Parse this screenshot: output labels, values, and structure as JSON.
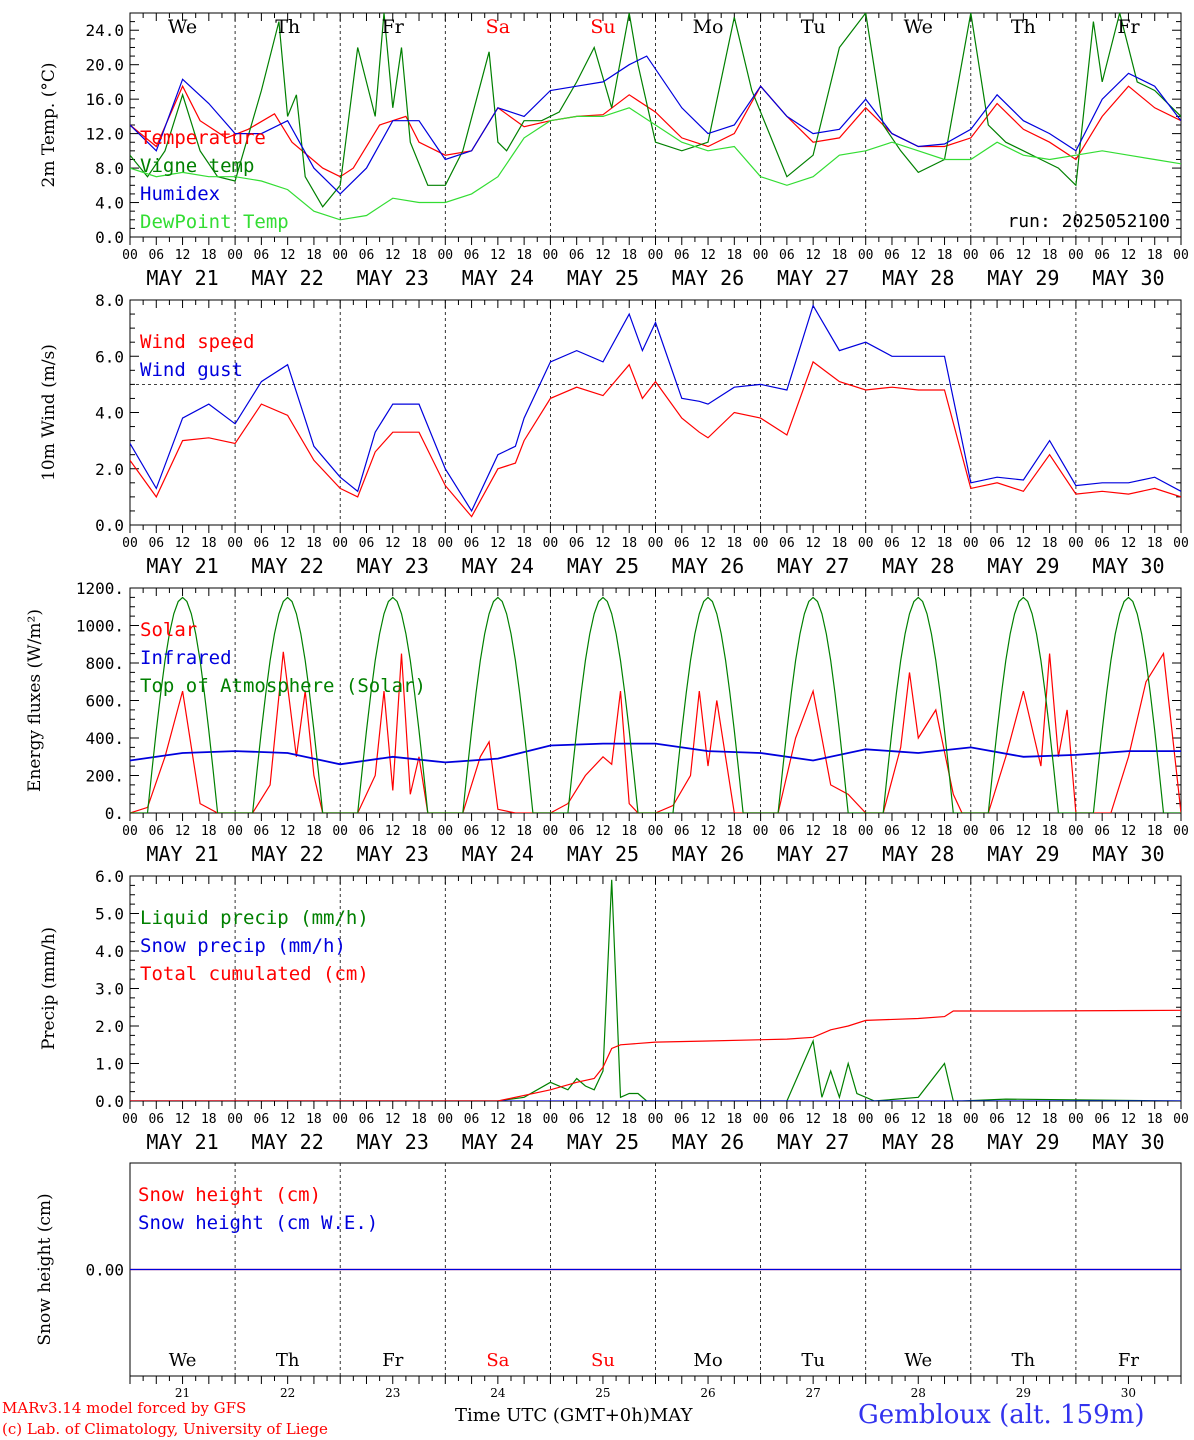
{
  "colors": {
    "red": "#ff0000",
    "green": "#008000",
    "lime": "#33dd33",
    "blue": "#0000dd",
    "black": "#000000",
    "location": "#3333ee"
  },
  "weekdays": [
    {
      "label": "We",
      "color": "black"
    },
    {
      "label": "Th",
      "color": "black"
    },
    {
      "label": "Fr",
      "color": "black"
    },
    {
      "label": "Sa",
      "color": "red"
    },
    {
      "label": "Su",
      "color": "red"
    },
    {
      "label": "Mo",
      "color": "black"
    },
    {
      "label": "Tu",
      "color": "black"
    },
    {
      "label": "We",
      "color": "black"
    },
    {
      "label": "Th",
      "color": "black"
    },
    {
      "label": "Fr",
      "color": "black"
    }
  ],
  "dates": [
    "MAY 21",
    "MAY 22",
    "MAY 23",
    "MAY 24",
    "MAY 25",
    "MAY 26",
    "MAY 27",
    "MAY 28",
    "MAY 29",
    "MAY 30"
  ],
  "day_numbers": [
    "21",
    "22",
    "23",
    "24",
    "25",
    "26",
    "27",
    "28",
    "29",
    "30"
  ],
  "hour_labels": [
    "00",
    "06",
    "12",
    "18"
  ],
  "run_label": "run: 2025052100",
  "footer": {
    "model": "MARv3.14 model forced by GFS",
    "credit": "(c) Lab. of Climatology, University of Liege",
    "time_axis": "Time UTC (GMT+0h)",
    "month": "MAY",
    "location": "Gembloux (alt. 159m)"
  },
  "chart_data": [
    {
      "type": "line",
      "ylabel": "2m Temp. (°C)",
      "ylim": [
        0,
        26
      ],
      "yticks": [
        "0.0",
        "4.0",
        "8.0",
        "12.0",
        "16.0",
        "20.0",
        "24.0"
      ],
      "x_unit": "hours since MAY 21 00 UTC",
      "series": [
        {
          "name": "Temperature",
          "color": "red",
          "x": [
            0,
            6,
            12,
            16,
            22,
            27,
            33,
            37,
            44,
            48,
            51,
            57,
            63,
            66,
            72,
            78,
            84,
            90,
            96,
            102,
            108,
            114,
            120,
            126,
            132,
            138,
            144,
            150,
            156,
            162,
            168,
            174,
            180,
            186,
            192,
            198,
            204,
            210,
            216,
            222,
            228,
            234,
            240
          ],
          "y": [
            13,
            10.5,
            17.5,
            13.5,
            11.5,
            12.5,
            14.3,
            11,
            8,
            7,
            8,
            13,
            14,
            11,
            9.5,
            10,
            15,
            12.8,
            13.5,
            14,
            14.2,
            16.5,
            14.5,
            11.5,
            10.5,
            12,
            17.5,
            14,
            11,
            11.5,
            15,
            12,
            10.5,
            10.5,
            11.5,
            15.5,
            12.5,
            11,
            9,
            14,
            17.5,
            15,
            13.5
          ]
        },
        {
          "name": "Vigne temp",
          "color": "green",
          "x": [
            0,
            4,
            8,
            12,
            16,
            20,
            24,
            30,
            34,
            36,
            38,
            40,
            44,
            48,
            52,
            56,
            58,
            60,
            62,
            64,
            68,
            72,
            76,
            82,
            84,
            86,
            90,
            94,
            98,
            102,
            106,
            110,
            114,
            116,
            120,
            126,
            132,
            138,
            142,
            146,
            150,
            156,
            162,
            168,
            172,
            176,
            180,
            186,
            192,
            196,
            200,
            204,
            208,
            212,
            216,
            220,
            222,
            226,
            230,
            234,
            238,
            240
          ],
          "y": [
            9.5,
            7,
            10,
            16.5,
            10,
            7,
            6.5,
            17,
            25,
            14,
            16.5,
            7,
            3.5,
            6,
            22,
            14,
            26,
            15,
            22,
            11,
            6,
            6,
            10,
            21.5,
            11,
            10,
            13.5,
            13.5,
            14.5,
            18,
            22,
            15,
            26,
            20,
            11,
            10,
            11,
            25.5,
            17,
            12,
            7,
            9.5,
            22,
            26,
            13,
            10,
            7.5,
            9,
            26,
            13,
            11,
            10,
            9,
            8,
            6,
            25,
            18,
            26,
            18,
            17,
            15,
            14
          ]
        },
        {
          "name": "Humidex",
          "color": "blue",
          "x": [
            0,
            6,
            12,
            18,
            24,
            30,
            36,
            42,
            48,
            54,
            60,
            66,
            72,
            78,
            84,
            90,
            96,
            102,
            108,
            114,
            118,
            126,
            132,
            138,
            144,
            150,
            156,
            162,
            168,
            174,
            180,
            186,
            192,
            198,
            204,
            210,
            216,
            222,
            228,
            234,
            240
          ],
          "y": [
            13,
            10,
            18.3,
            15.5,
            12,
            12,
            13.5,
            8,
            5,
            8,
            13.5,
            13.5,
            9,
            10,
            15,
            14,
            17,
            17.5,
            18,
            20,
            21,
            15,
            12,
            13,
            17.5,
            14,
            12,
            12.5,
            16,
            12,
            10.5,
            10.8,
            12.5,
            16.5,
            13.5,
            12,
            10,
            16,
            19,
            17.5,
            13.5
          ]
        },
        {
          "name": "DewPoint Temp",
          "color": "lime",
          "x": [
            0,
            6,
            12,
            18,
            24,
            30,
            36,
            42,
            48,
            54,
            60,
            66,
            72,
            78,
            84,
            90,
            96,
            102,
            108,
            114,
            120,
            126,
            132,
            138,
            144,
            150,
            156,
            162,
            168,
            174,
            180,
            186,
            192,
            198,
            204,
            210,
            216,
            222,
            228,
            234,
            240
          ],
          "y": [
            8,
            7,
            7.5,
            7,
            7,
            6.5,
            5.5,
            3,
            2,
            2.5,
            4.5,
            4,
            4,
            5,
            7,
            11.5,
            13.5,
            14,
            14,
            15,
            13,
            11,
            10,
            10.5,
            7,
            6,
            7,
            9.5,
            10,
            11,
            10,
            9,
            9,
            11,
            9.5,
            9,
            9.5,
            10,
            9.5,
            9,
            8.5
          ]
        }
      ]
    },
    {
      "type": "line",
      "ylabel": "10m Wind (m/s)",
      "ylim": [
        0,
        8
      ],
      "yticks": [
        "0.0",
        "2.0",
        "4.0",
        "6.0",
        "8.0"
      ],
      "reference_line": 5,
      "series": [
        {
          "name": "Wind speed",
          "color": "red",
          "x": [
            0,
            6,
            12,
            18,
            24,
            30,
            36,
            42,
            48,
            52,
            56,
            60,
            66,
            72,
            78,
            84,
            88,
            90,
            96,
            102,
            108,
            114,
            117,
            120,
            126,
            130,
            132,
            138,
            144,
            150,
            156,
            162,
            168,
            174,
            180,
            186,
            192,
            198,
            204,
            210,
            216,
            222,
            228,
            234,
            240
          ],
          "y": [
            2.3,
            1,
            3,
            3.1,
            2.9,
            4.3,
            3.9,
            2.3,
            1.3,
            1,
            2.6,
            3.3,
            3.3,
            1.4,
            0.3,
            2,
            2.2,
            3,
            4.5,
            4.9,
            4.6,
            5.7,
            4.5,
            5.1,
            3.8,
            3.3,
            3.1,
            4,
            3.8,
            3.2,
            5.8,
            5.1,
            4.8,
            4.9,
            4.8,
            4.8,
            1.3,
            1.5,
            1.2,
            2.5,
            1.1,
            1.2,
            1.1,
            1.3,
            1
          ]
        },
        {
          "name": "Wind gust",
          "color": "blue",
          "x": [
            0,
            6,
            12,
            18,
            24,
            30,
            36,
            42,
            48,
            52,
            56,
            60,
            66,
            72,
            78,
            84,
            88,
            90,
            96,
            102,
            108,
            114,
            117,
            120,
            126,
            130,
            132,
            138,
            144,
            150,
            156,
            162,
            168,
            174,
            180,
            186,
            192,
            198,
            204,
            210,
            216,
            222,
            228,
            234,
            240
          ],
          "y": [
            2.9,
            1.3,
            3.8,
            4.3,
            3.6,
            5.1,
            5.7,
            2.8,
            1.7,
            1.2,
            3.3,
            4.3,
            4.3,
            2,
            0.5,
            2.5,
            2.8,
            3.8,
            5.8,
            6.2,
            5.8,
            7.5,
            6.2,
            7.2,
            4.5,
            4.4,
            4.3,
            4.9,
            5,
            4.8,
            7.8,
            6.2,
            6.5,
            6,
            6,
            6,
            1.5,
            1.7,
            1.6,
            3,
            1.4,
            1.5,
            1.5,
            1.7,
            1.2
          ]
        }
      ]
    },
    {
      "type": "line",
      "ylabel": "Energy fluxes (W/m²)",
      "ylim": [
        0,
        1200
      ],
      "yticks": [
        "0.",
        "200.",
        "400.",
        "600.",
        "800.",
        "1000.",
        "1200."
      ],
      "series": [
        {
          "name": "Solar",
          "color": "red",
          "x": [
            0,
            4,
            8,
            12,
            16,
            20,
            24,
            28,
            32,
            35,
            38,
            40,
            42,
            44,
            48,
            52,
            56,
            58,
            60,
            62,
            64,
            66,
            68,
            72,
            76,
            80,
            82,
            84,
            88,
            96,
            100,
            104,
            108,
            110,
            112,
            114,
            116,
            120,
            124,
            128,
            130,
            132,
            134,
            138,
            144,
            148,
            152,
            156,
            160,
            164,
            168,
            172,
            176,
            178,
            180,
            184,
            188,
            190,
            192,
            196,
            200,
            204,
            208,
            210,
            212,
            214,
            216,
            220,
            224,
            228,
            232,
            236,
            240
          ],
          "y": [
            0,
            30,
            300,
            650,
            50,
            0,
            0,
            0,
            150,
            860,
            300,
            650,
            200,
            0,
            0,
            0,
            200,
            650,
            120,
            850,
            100,
            300,
            0,
            0,
            0,
            300,
            380,
            20,
            0,
            0,
            50,
            200,
            300,
            260,
            650,
            50,
            0,
            0,
            40,
            200,
            650,
            250,
            600,
            0,
            0,
            0,
            400,
            650,
            150,
            100,
            0,
            0,
            350,
            750,
            400,
            550,
            100,
            0,
            0,
            0,
            300,
            650,
            250,
            850,
            300,
            550,
            0,
            0,
            0,
            300,
            700,
            850,
            0
          ]
        },
        {
          "name": "Infrared",
          "color": "blue",
          "x": [
            0,
            12,
            24,
            36,
            48,
            60,
            72,
            84,
            96,
            108,
            120,
            132,
            144,
            156,
            168,
            180,
            192,
            204,
            216,
            228,
            240
          ],
          "y": [
            280,
            320,
            330,
            320,
            260,
            300,
            270,
            290,
            360,
            370,
            370,
            330,
            320,
            280,
            340,
            320,
            350,
            300,
            310,
            330,
            330
          ]
        },
        {
          "name": "Top of Atmosphere (Solar)",
          "color": "green",
          "diurnal_peak": 1150,
          "daylight_hours": [
            4,
            20
          ]
        }
      ]
    },
    {
      "type": "line",
      "ylabel": "Precip (mm/h)",
      "ylim": [
        0,
        6
      ],
      "yticks": [
        "0.0",
        "1.0",
        "2.0",
        "3.0",
        "4.0",
        "5.0",
        "6.0"
      ],
      "series": [
        {
          "name": "Liquid precip (mm/h)",
          "color": "green",
          "x": [
            0,
            84,
            90,
            96,
            100,
            102,
            104,
            106,
            108,
            110,
            112,
            114,
            116,
            118,
            122,
            132,
            150,
            156,
            158,
            160,
            162,
            164,
            166,
            170,
            180,
            186,
            188,
            190,
            200,
            240
          ],
          "y": [
            0,
            0,
            0.1,
            0.5,
            0.3,
            0.6,
            0.4,
            0.3,
            0.8,
            5.9,
            0.1,
            0.2,
            0.2,
            0,
            0,
            0,
            0,
            1.6,
            0.1,
            0.8,
            0.1,
            1,
            0.2,
            0,
            0.1,
            1,
            0,
            0,
            0.05,
            0
          ]
        },
        {
          "name": "Snow precip (mm/h)",
          "color": "blue",
          "x": [
            0,
            240
          ],
          "y": [
            0,
            0
          ]
        },
        {
          "name": "Total cumulated (cm)",
          "color": "red",
          "x": [
            0,
            84,
            96,
            102,
            106,
            108,
            110,
            112,
            120,
            132,
            150,
            156,
            160,
            164,
            168,
            180,
            186,
            188,
            192,
            204,
            240
          ],
          "y": [
            0,
            0,
            0.3,
            0.5,
            0.6,
            0.9,
            1.4,
            1.5,
            1.57,
            1.6,
            1.65,
            1.7,
            1.9,
            2,
            2.15,
            2.2,
            2.25,
            2.4,
            2.4,
            2.4,
            2.42
          ]
        }
      ]
    },
    {
      "type": "line",
      "ylabel": "Snow height (cm)",
      "yticks": [
        "0.00"
      ],
      "series": [
        {
          "name": "Snow height (cm)",
          "color": "red",
          "x": [
            0,
            240
          ],
          "y": [
            0,
            0
          ]
        },
        {
          "name": "Snow height (cm W.E.)",
          "color": "blue",
          "x": [
            0,
            240
          ],
          "y": [
            0,
            0
          ]
        }
      ]
    }
  ]
}
